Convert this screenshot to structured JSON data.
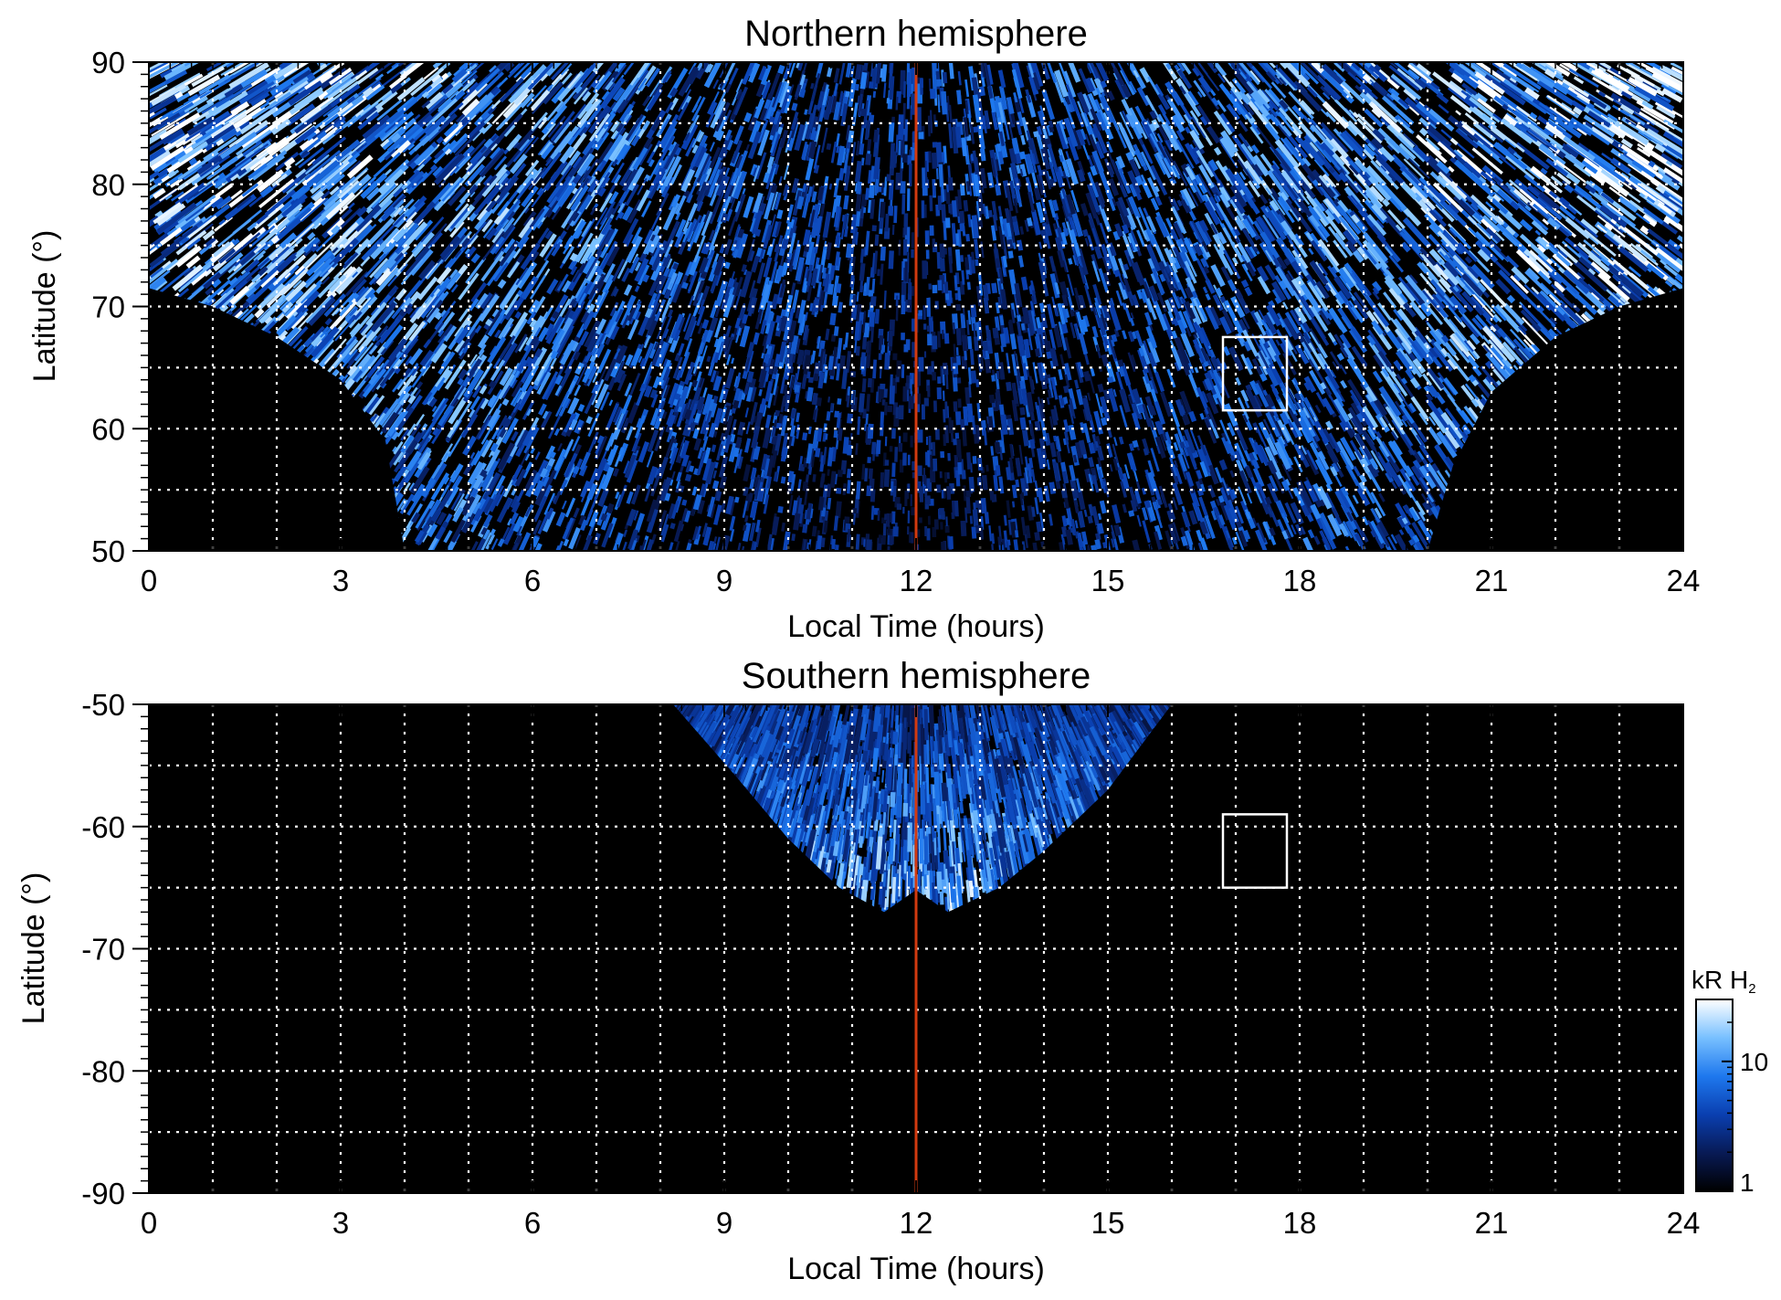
{
  "chart_data": [
    {
      "type": "heatmap",
      "id": "north",
      "title": "Northern hemisphere",
      "xlabel": "Local Time (hours)",
      "ylabel": "Latitude (°)",
      "xlim": [
        0,
        24
      ],
      "ylim": [
        50,
        90
      ],
      "xticks": [
        "0",
        "3",
        "6",
        "9",
        "12",
        "15",
        "18",
        "21",
        "24"
      ],
      "yticks": [
        "50",
        "60",
        "70",
        "80",
        "90"
      ],
      "ytick_values": [
        50,
        60,
        70,
        80,
        90
      ],
      "grid": true,
      "grid_x": [
        1,
        2,
        3,
        4,
        5,
        6,
        7,
        8,
        9,
        10,
        11,
        13,
        14,
        15,
        16,
        17,
        18,
        19,
        20,
        21,
        22,
        23
      ],
      "grid_y": [
        55,
        60,
        65,
        70,
        75,
        80,
        85
      ],
      "noon_line_x": 12,
      "box": {
        "x0": 16.8,
        "x1": 17.8,
        "y0": 61.5,
        "y1": 67.5
      },
      "coverage_boundary": [
        [
          0,
          71.5
        ],
        [
          1,
          70
        ],
        [
          2,
          67.5
        ],
        [
          3,
          64
        ],
        [
          3.7,
          59
        ],
        [
          4,
          50
        ],
        [
          20,
          50
        ],
        [
          20.4,
          57
        ],
        [
          21,
          63
        ],
        [
          22,
          67.5
        ],
        [
          23,
          70
        ],
        [
          24,
          71.5
        ]
      ]
    },
    {
      "type": "heatmap",
      "id": "south",
      "title": "Southern hemisphere",
      "xlabel": "Local Time (hours)",
      "ylabel": "Latitude (°)",
      "xlim": [
        0,
        24
      ],
      "ylim": [
        -90,
        -50
      ],
      "xticks": [
        "0",
        "3",
        "6",
        "9",
        "12",
        "15",
        "18",
        "21",
        "24"
      ],
      "yticks": [
        "-90",
        "-80",
        "-70",
        "-60",
        "-50"
      ],
      "ytick_values": [
        -90,
        -80,
        -70,
        -60,
        -50
      ],
      "grid": true,
      "grid_x": [
        1,
        2,
        3,
        4,
        5,
        6,
        7,
        8,
        9,
        10,
        11,
        13,
        14,
        15,
        16,
        17,
        18,
        19,
        20,
        21,
        22,
        23
      ],
      "grid_y": [
        -55,
        -60,
        -65,
        -70,
        -75,
        -80,
        -85
      ],
      "noon_line_x": 12,
      "box": {
        "x0": 16.8,
        "x1": 17.8,
        "y0": -65,
        "y1": -59
      },
      "coverage_boundary": [
        [
          8.2,
          -50
        ],
        [
          9.2,
          -56
        ],
        [
          10,
          -61
        ],
        [
          10.8,
          -65
        ],
        [
          11.5,
          -67
        ],
        [
          12,
          -65.2
        ],
        [
          12.5,
          -67
        ],
        [
          13.3,
          -65
        ],
        [
          14,
          -62
        ],
        [
          15,
          -57
        ],
        [
          16,
          -50
        ]
      ]
    }
  ],
  "colorbar": {
    "title": "kR H",
    "subscript": "2",
    "scale": "log",
    "range": [
      1,
      30
    ],
    "ticks": [
      "1",
      "10"
    ],
    "tick_values": [
      1,
      10
    ],
    "colors": [
      "#000000",
      "#081a55",
      "#0a3fb0",
      "#1e78ee",
      "#78c0ff",
      "#ffffff"
    ]
  },
  "colors": {
    "noon_line": "#d23a10",
    "grid": "#ffffff",
    "background": "#000000",
    "box": "#ffffff"
  }
}
